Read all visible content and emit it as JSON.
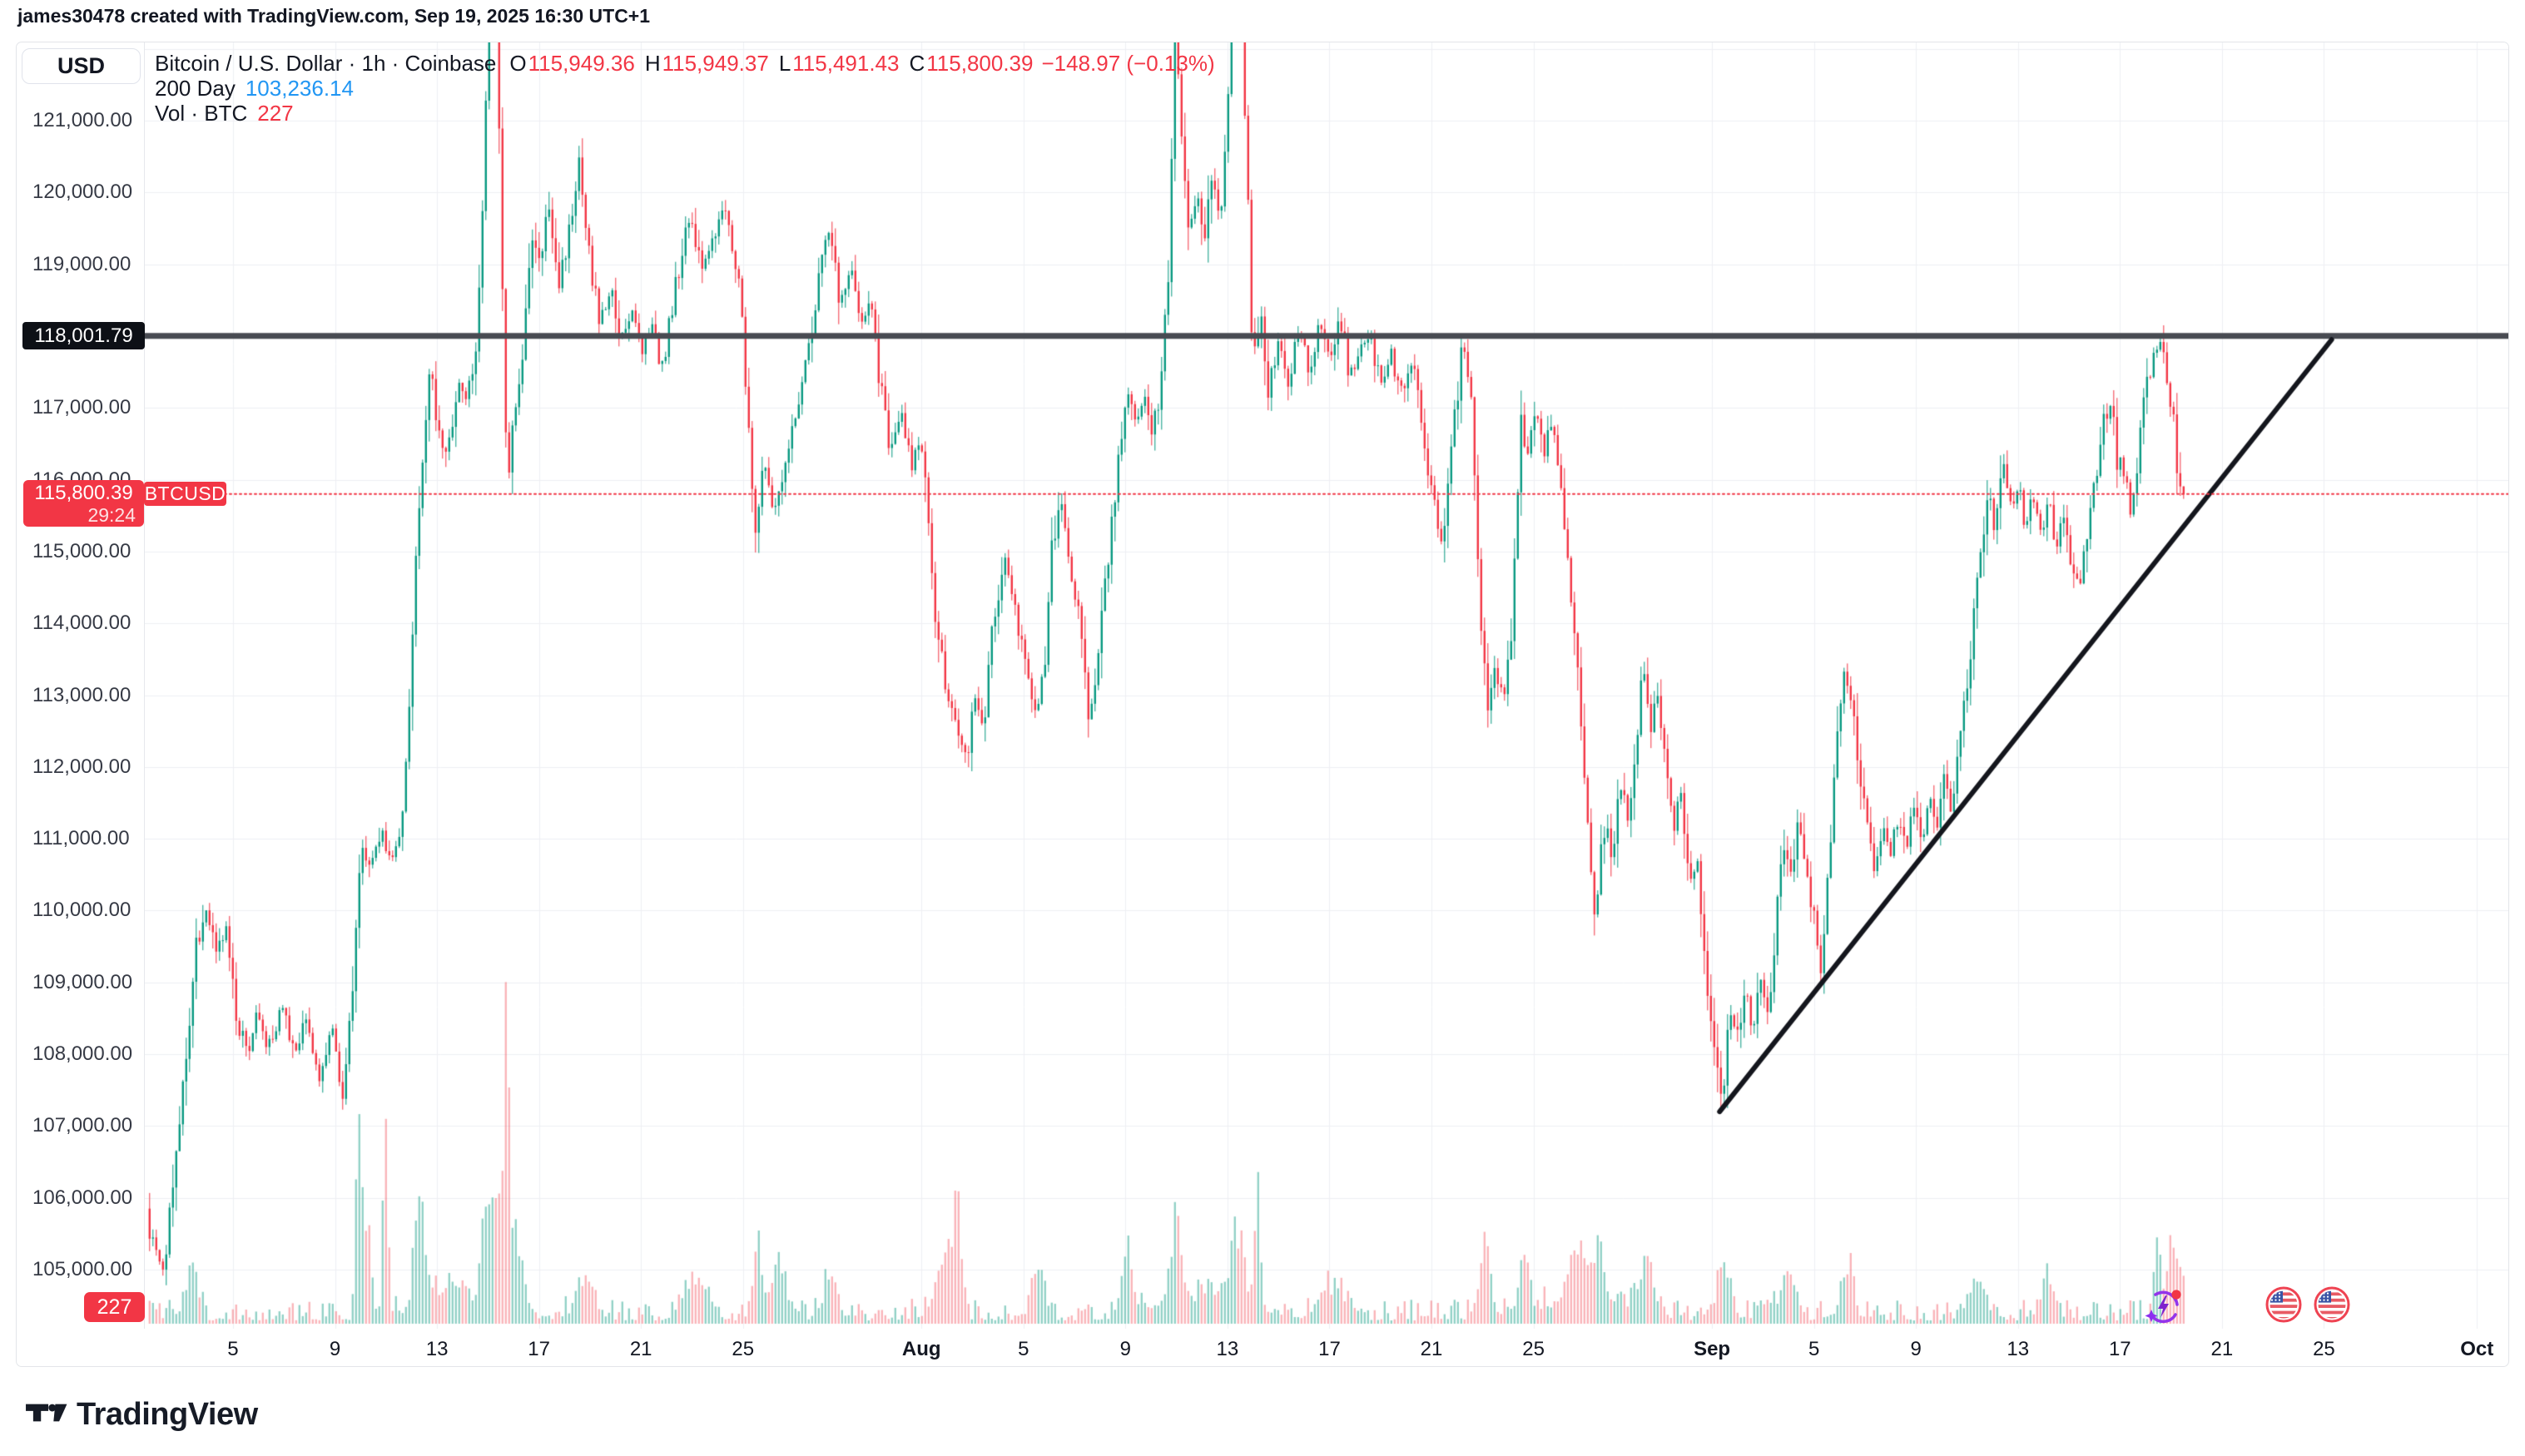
{
  "header": {
    "attribution": "james30478 created with TradingView.com, Sep 19, 2025 16:30 UTC+1"
  },
  "price_scale": {
    "currency_button": "USD",
    "line_price_tag": "118,001.79",
    "last_price_tag": {
      "price": "115,800.39",
      "countdown": "29:24"
    },
    "symbol_tag": "BTCUSD",
    "volume_tag": "227",
    "ticks": [
      {
        "label": "121,000.00",
        "price": 121000
      },
      {
        "label": "120,000.00",
        "price": 120000
      },
      {
        "label": "119,000.00",
        "price": 119000
      },
      {
        "label": "117,000.00",
        "price": 117000
      },
      {
        "label": "116,000.00",
        "price": 116000
      },
      {
        "label": "115,000.00",
        "price": 115000
      },
      {
        "label": "114,000.00",
        "price": 114000
      },
      {
        "label": "113,000.00",
        "price": 113000
      },
      {
        "label": "112,000.00",
        "price": 112000
      },
      {
        "label": "111,000.00",
        "price": 111000
      },
      {
        "label": "110,000.00",
        "price": 110000
      },
      {
        "label": "109,000.00",
        "price": 109000
      },
      {
        "label": "108,000.00",
        "price": 108000
      },
      {
        "label": "107,000.00",
        "price": 107000
      },
      {
        "label": "106,000.00",
        "price": 106000
      },
      {
        "label": "105,000.00",
        "price": 105000
      }
    ]
  },
  "legend": {
    "symbol_row": {
      "title": "Bitcoin / U.S. Dollar · 1h · Coinbase",
      "o_label": "O",
      "o_value": "115,949.36",
      "h_label": "H",
      "h_value": "115,949.37",
      "l_label": "L",
      "l_value": "115,491.43",
      "c_label": "C",
      "c_value": "115,800.39",
      "change": "−148.97 (−0.13%)"
    },
    "ma_row": {
      "label": "200 Day",
      "value": "103,236.14"
    },
    "volume_row": {
      "label": "Vol · BTC",
      "value": "227"
    }
  },
  "time_scale": {
    "ticks": [
      {
        "label": "5",
        "day": 4,
        "bold": false
      },
      {
        "label": "9",
        "day": 8,
        "bold": false
      },
      {
        "label": "13",
        "day": 12,
        "bold": false
      },
      {
        "label": "17",
        "day": 16,
        "bold": false
      },
      {
        "label": "21",
        "day": 20,
        "bold": false
      },
      {
        "label": "25",
        "day": 24,
        "bold": false
      },
      {
        "label": "Aug",
        "day": 31,
        "bold": true
      },
      {
        "label": "5",
        "day": 35,
        "bold": false
      },
      {
        "label": "9",
        "day": 39,
        "bold": false
      },
      {
        "label": "13",
        "day": 43,
        "bold": false
      },
      {
        "label": "17",
        "day": 47,
        "bold": false
      },
      {
        "label": "21",
        "day": 51,
        "bold": false
      },
      {
        "label": "25",
        "day": 55,
        "bold": false
      },
      {
        "label": "Sep",
        "day": 62,
        "bold": true
      },
      {
        "label": "5",
        "day": 66,
        "bold": false
      },
      {
        "label": "9",
        "day": 70,
        "bold": false
      },
      {
        "label": "13",
        "day": 74,
        "bold": false
      },
      {
        "label": "17",
        "day": 78,
        "bold": false
      },
      {
        "label": "21",
        "day": 82,
        "bold": false
      },
      {
        "label": "25",
        "day": 86,
        "bold": false
      },
      {
        "label": "Oct",
        "day": 92,
        "bold": true
      }
    ]
  },
  "footer": {
    "brand_name": "TradingView"
  },
  "chart_data": {
    "type": "candlestick",
    "title": "Bitcoin / U.S. Dollar",
    "symbol": "BTCUSD",
    "exchange": "Coinbase",
    "interval": "1h",
    "quote_currency": "USD",
    "ohlc": {
      "open": 115949.36,
      "high": 115949.37,
      "low": 115491.43,
      "close": 115800.39,
      "change": -148.97,
      "change_pct": -0.13
    },
    "ma_200_day": 103236.14,
    "volume_btc": 227,
    "last_price": 115800.39,
    "horizontal_level": 118001.79,
    "trendline": {
      "from": {
        "day": 62.3,
        "price": 107200
      },
      "to": {
        "day": 86.3,
        "price": 117950
      }
    },
    "y_axis": {
      "visible_min": 104100,
      "visible_max": 122100,
      "tick_step": 1000,
      "grid_min": 105000,
      "grid_max": 122000
    },
    "x_axis": {
      "start": "Jul 1",
      "end": "Oct 1",
      "days_visible": 92,
      "grid": true,
      "tick_interval_days": 4
    },
    "colors": {
      "up": "#089981",
      "down": "#f23645",
      "vol_up": "rgba(8,153,129,0.45)",
      "vol_down": "rgba(242,54,69,0.38)",
      "grid": "#eef0f3",
      "level_line": "#484b52",
      "trend_line": "#14161d",
      "last_price_line": "#f23645",
      "accent_blue": "#2196f3",
      "accent_red": "#f23645",
      "tag_black": "#0d1016"
    },
    "price_anchors": [
      [
        0.0,
        107400
      ],
      [
        0.3,
        106600
      ],
      [
        0.7,
        105600
      ],
      [
        1.0,
        105300
      ],
      [
        1.3,
        105050
      ],
      [
        1.7,
        106400
      ],
      [
        2.1,
        107600
      ],
      [
        2.5,
        109300
      ],
      [
        2.9,
        110100
      ],
      [
        3.3,
        109400
      ],
      [
        3.7,
        109800
      ],
      [
        4.1,
        108700
      ],
      [
        4.5,
        107950
      ],
      [
        4.9,
        108600
      ],
      [
        5.4,
        108100
      ],
      [
        5.9,
        108700
      ],
      [
        6.4,
        108000
      ],
      [
        6.9,
        108500
      ],
      [
        7.4,
        107600
      ],
      [
        7.9,
        108300
      ],
      [
        8.3,
        107450
      ],
      [
        8.7,
        109000
      ],
      [
        9.0,
        111000
      ],
      [
        9.4,
        110500
      ],
      [
        9.8,
        111200
      ],
      [
        10.2,
        110700
      ],
      [
        10.6,
        111000
      ],
      [
        11.0,
        113500
      ],
      [
        11.3,
        115800
      ],
      [
        11.7,
        117500
      ],
      [
        12.0,
        116900
      ],
      [
        12.4,
        116300
      ],
      [
        12.8,
        117400
      ],
      [
        13.2,
        117100
      ],
      [
        13.6,
        118200
      ],
      [
        13.85,
        120500
      ],
      [
        14.1,
        123200
      ],
      [
        14.35,
        122300
      ],
      [
        14.55,
        118800
      ],
      [
        14.75,
        115900
      ],
      [
        15.0,
        116800
      ],
      [
        15.4,
        117600
      ],
      [
        15.7,
        119600
      ],
      [
        16.0,
        118900
      ],
      [
        16.4,
        119800
      ],
      [
        16.8,
        118800
      ],
      [
        17.2,
        119500
      ],
      [
        17.6,
        120400
      ],
      [
        18.0,
        119000
      ],
      [
        18.4,
        118200
      ],
      [
        18.8,
        118700
      ],
      [
        19.2,
        117900
      ],
      [
        19.6,
        118400
      ],
      [
        20.0,
        117700
      ],
      [
        20.4,
        118200
      ],
      [
        20.8,
        117500
      ],
      [
        21.2,
        118300
      ],
      [
        21.6,
        119200
      ],
      [
        22.0,
        119700
      ],
      [
        22.4,
        118800
      ],
      [
        22.8,
        119300
      ],
      [
        23.2,
        119900
      ],
      [
        23.6,
        119100
      ],
      [
        23.9,
        118600
      ],
      [
        24.2,
        116800
      ],
      [
        24.45,
        115200
      ],
      [
        24.8,
        116300
      ],
      [
        25.2,
        115600
      ],
      [
        25.6,
        116200
      ],
      [
        26.0,
        116900
      ],
      [
        26.5,
        117600
      ],
      [
        27.0,
        118900
      ],
      [
        27.4,
        119500
      ],
      [
        27.8,
        118400
      ],
      [
        28.2,
        119000
      ],
      [
        28.6,
        118100
      ],
      [
        29.0,
        118500
      ],
      [
        29.4,
        117300
      ],
      [
        29.8,
        116400
      ],
      [
        30.2,
        116900
      ],
      [
        30.6,
        116200
      ],
      [
        31.0,
        116500
      ],
      [
        31.3,
        115200
      ],
      [
        31.6,
        114000
      ],
      [
        31.9,
        113300
      ],
      [
        32.2,
        112700
      ],
      [
        32.5,
        112300
      ],
      [
        32.75,
        112050
      ],
      [
        33.1,
        112900
      ],
      [
        33.4,
        112500
      ],
      [
        33.7,
        113600
      ],
      [
        34.0,
        114300
      ],
      [
        34.3,
        115000
      ],
      [
        34.6,
        114400
      ],
      [
        34.9,
        113800
      ],
      [
        35.2,
        113200
      ],
      [
        35.5,
        112750
      ],
      [
        35.8,
        113400
      ],
      [
        36.1,
        114900
      ],
      [
        36.4,
        115800
      ],
      [
        36.7,
        115200
      ],
      [
        37.0,
        114500
      ],
      [
        37.3,
        113600
      ],
      [
        37.6,
        112600
      ],
      [
        37.9,
        113500
      ],
      [
        38.2,
        114600
      ],
      [
        38.5,
        115600
      ],
      [
        38.8,
        116600
      ],
      [
        39.1,
        117300
      ],
      [
        39.4,
        116800
      ],
      [
        39.7,
        117200
      ],
      [
        40.0,
        116600
      ],
      [
        40.3,
        117100
      ],
      [
        40.7,
        119000
      ],
      [
        40.95,
        122200
      ],
      [
        41.2,
        121000
      ],
      [
        41.5,
        119400
      ],
      [
        41.8,
        120000
      ],
      [
        42.1,
        119200
      ],
      [
        42.4,
        120300
      ],
      [
        42.7,
        119600
      ],
      [
        43.0,
        121000
      ],
      [
        43.3,
        123400
      ],
      [
        43.55,
        122700
      ],
      [
        43.8,
        119800
      ],
      [
        44.0,
        117600
      ],
      [
        44.3,
        118400
      ],
      [
        44.6,
        117300
      ],
      [
        45.0,
        118000
      ],
      [
        45.4,
        117400
      ],
      [
        45.8,
        118100
      ],
      [
        46.2,
        117500
      ],
      [
        46.6,
        118200
      ],
      [
        47.0,
        117600
      ],
      [
        47.4,
        118300
      ],
      [
        47.8,
        117400
      ],
      [
        48.2,
        117900
      ],
      [
        48.6,
        118050
      ],
      [
        49.0,
        117300
      ],
      [
        49.4,
        117800
      ],
      [
        49.8,
        117200
      ],
      [
        50.2,
        117700
      ],
      [
        50.6,
        116900
      ],
      [
        51.0,
        115900
      ],
      [
        51.4,
        115100
      ],
      [
        51.8,
        116400
      ],
      [
        52.2,
        117900
      ],
      [
        52.6,
        117200
      ],
      [
        52.9,
        113900
      ],
      [
        53.2,
        112900
      ],
      [
        53.5,
        113600
      ],
      [
        53.8,
        112700
      ],
      [
        54.1,
        113800
      ],
      [
        54.5,
        116800
      ],
      [
        54.8,
        116300
      ],
      [
        55.1,
        117000
      ],
      [
        55.4,
        116400
      ],
      [
        55.7,
        116800
      ],
      [
        56.0,
        116200
      ],
      [
        56.3,
        115200
      ],
      [
        56.6,
        113900
      ],
      [
        56.9,
        112500
      ],
      [
        57.2,
        110600
      ],
      [
        57.45,
        109900
      ],
      [
        57.8,
        111300
      ],
      [
        58.1,
        110500
      ],
      [
        58.4,
        111800
      ],
      [
        58.7,
        111200
      ],
      [
        59.0,
        112400
      ],
      [
        59.3,
        113300
      ],
      [
        59.6,
        112500
      ],
      [
        59.9,
        113000
      ],
      [
        60.2,
        112000
      ],
      [
        60.5,
        111200
      ],
      [
        60.8,
        111600
      ],
      [
        61.1,
        110300
      ],
      [
        61.4,
        110800
      ],
      [
        61.7,
        109300
      ],
      [
        62.0,
        108400
      ],
      [
        62.35,
        107250
      ],
      [
        62.7,
        108700
      ],
      [
        63.0,
        108200
      ],
      [
        63.3,
        108900
      ],
      [
        63.6,
        108300
      ],
      [
        63.9,
        109200
      ],
      [
        64.2,
        108600
      ],
      [
        64.5,
        109800
      ],
      [
        64.8,
        111000
      ],
      [
        65.1,
        110400
      ],
      [
        65.4,
        111300
      ],
      [
        65.7,
        110500
      ],
      [
        66.0,
        109900
      ],
      [
        66.3,
        109200
      ],
      [
        66.6,
        110800
      ],
      [
        66.9,
        112500
      ],
      [
        67.2,
        113300
      ],
      [
        67.5,
        112800
      ],
      [
        67.8,
        111800
      ],
      [
        68.1,
        111100
      ],
      [
        68.4,
        110600
      ],
      [
        68.7,
        111200
      ],
      [
        69.0,
        110700
      ],
      [
        69.3,
        111400
      ],
      [
        69.6,
        110800
      ],
      [
        69.9,
        111500
      ],
      [
        70.2,
        110900
      ],
      [
        70.5,
        111700
      ],
      [
        70.8,
        111100
      ],
      [
        71.1,
        112000
      ],
      [
        71.4,
        111400
      ],
      [
        71.7,
        112300
      ],
      [
        72.0,
        113200
      ],
      [
        72.4,
        114600
      ],
      [
        72.8,
        115900
      ],
      [
        73.1,
        115300
      ],
      [
        73.4,
        116200
      ],
      [
        73.7,
        115600
      ],
      [
        74.0,
        115900
      ],
      [
        74.3,
        115400
      ],
      [
        74.6,
        115800
      ],
      [
        74.9,
        115300
      ],
      [
        75.2,
        115700
      ],
      [
        75.5,
        115100
      ],
      [
        75.8,
        115500
      ],
      [
        76.1,
        114900
      ],
      [
        76.4,
        114500
      ],
      [
        76.7,
        115300
      ],
      [
        77.0,
        115900
      ],
      [
        77.3,
        116700
      ],
      [
        77.6,
        117100
      ],
      [
        77.9,
        116300
      ],
      [
        78.2,
        116000
      ],
      [
        78.45,
        115600
      ],
      [
        78.7,
        116400
      ],
      [
        79.0,
        117200
      ],
      [
        79.3,
        117700
      ],
      [
        79.55,
        117960
      ],
      [
        79.8,
        117400
      ],
      [
        80.0,
        117100
      ],
      [
        80.15,
        116600
      ],
      [
        80.3,
        116100
      ],
      [
        80.42,
        115800
      ]
    ],
    "volume_spikes": [
      [
        0.2,
        95,
        0.15
      ],
      [
        2.3,
        60,
        0.2
      ],
      [
        8.8,
        300,
        0.1
      ],
      [
        9.1,
        120,
        0.18
      ],
      [
        9.85,
        220,
        0.1
      ],
      [
        11.2,
        145,
        0.18
      ],
      [
        12.5,
        35,
        1.2
      ],
      [
        13.9,
        150,
        0.2
      ],
      [
        14.3,
        130,
        0.15
      ],
      [
        14.6,
        280,
        0.1
      ],
      [
        15.0,
        85,
        0.3
      ],
      [
        17.6,
        50,
        0.3
      ],
      [
        22.0,
        45,
        0.4
      ],
      [
        24.45,
        145,
        0.12
      ],
      [
        25.2,
        60,
        0.3
      ],
      [
        27.3,
        45,
        0.3
      ],
      [
        31.8,
        85,
        0.3
      ],
      [
        32.3,
        105,
        0.18
      ],
      [
        35.5,
        55,
        0.25
      ],
      [
        38.9,
        75,
        0.2
      ],
      [
        40.85,
        115,
        0.18
      ],
      [
        41.8,
        30,
        1.5
      ],
      [
        43.3,
        90,
        0.25
      ],
      [
        44.05,
        125,
        0.12
      ],
      [
        47.0,
        40,
        0.5
      ],
      [
        52.95,
        95,
        0.18
      ],
      [
        54.5,
        85,
        0.18
      ],
      [
        56.5,
        25,
        1.5
      ],
      [
        56.6,
        60,
        0.35
      ],
      [
        57.4,
        75,
        0.2
      ],
      [
        59.3,
        50,
        0.3
      ],
      [
        62.35,
        65,
        0.22
      ],
      [
        64.8,
        50,
        0.3
      ],
      [
        67.2,
        55,
        0.25
      ],
      [
        72.2,
        50,
        0.3
      ],
      [
        75.0,
        42,
        0.3
      ],
      [
        79.35,
        135,
        0.1
      ],
      [
        79.9,
        75,
        0.18
      ],
      [
        80.3,
        55,
        0.15
      ]
    ]
  }
}
